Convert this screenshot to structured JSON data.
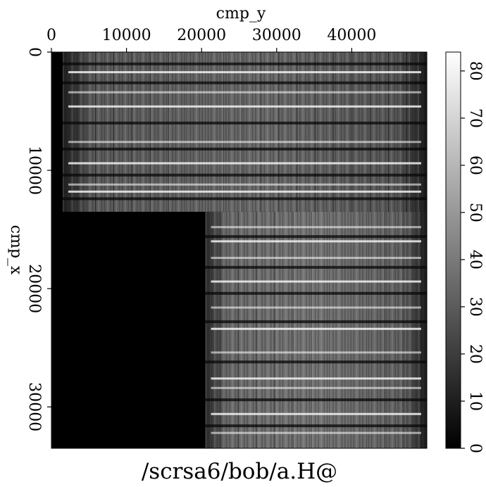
{
  "chart_data": {
    "type": "heatmap",
    "colormap": "grayscale",
    "title": "/scrsa6/bob/a.H@",
    "xlabel": "cmp_y",
    "ylabel": "cmp_x",
    "x_axis_position": "top",
    "y_axis_direction": "down",
    "xlim": [
      0,
      50000
    ],
    "ylim": [
      0,
      33500
    ],
    "x_ticks": [
      0,
      10000,
      20000,
      30000,
      40000
    ],
    "x_tick_labels": [
      "0",
      "10000",
      "20000",
      "30000",
      "40000"
    ],
    "y_ticks": [
      0,
      10000,
      20000,
      30000
    ],
    "y_tick_labels": [
      "0",
      "10000",
      "20000",
      "30000"
    ],
    "colorbar": {
      "range": [
        0,
        84
      ],
      "ticks": [
        0,
        10,
        20,
        30,
        40,
        50,
        60,
        70,
        80
      ],
      "tick_labels": [
        "0",
        "10",
        "20",
        "30",
        "40",
        "50",
        "60",
        "70",
        "80"
      ],
      "position": "right"
    },
    "regions": [
      {
        "name": "upper",
        "x_range": [
          1500,
          50000
        ],
        "y_range": [
          0,
          13500
        ],
        "typical_value": 40
      },
      {
        "name": "lower",
        "x_range": [
          20500,
          50000
        ],
        "y_range": [
          13500,
          33500
        ],
        "typical_value": 42
      },
      {
        "name": "empty",
        "x_range": [
          0,
          20500
        ],
        "y_range": [
          13500,
          33500
        ],
        "typical_value": 0
      }
    ],
    "bright_bands_y": [
      1700,
      3400,
      4600,
      7600,
      9400,
      11200,
      11800,
      14800,
      16000,
      17400,
      19400,
      21600,
      23400,
      25400,
      27600,
      28400,
      30600,
      32200
    ],
    "dark_bands_y": [
      1000,
      2600,
      6000,
      8200,
      10400,
      12400,
      15600,
      18200,
      20400,
      22800,
      26200,
      29400,
      31600
    ]
  }
}
